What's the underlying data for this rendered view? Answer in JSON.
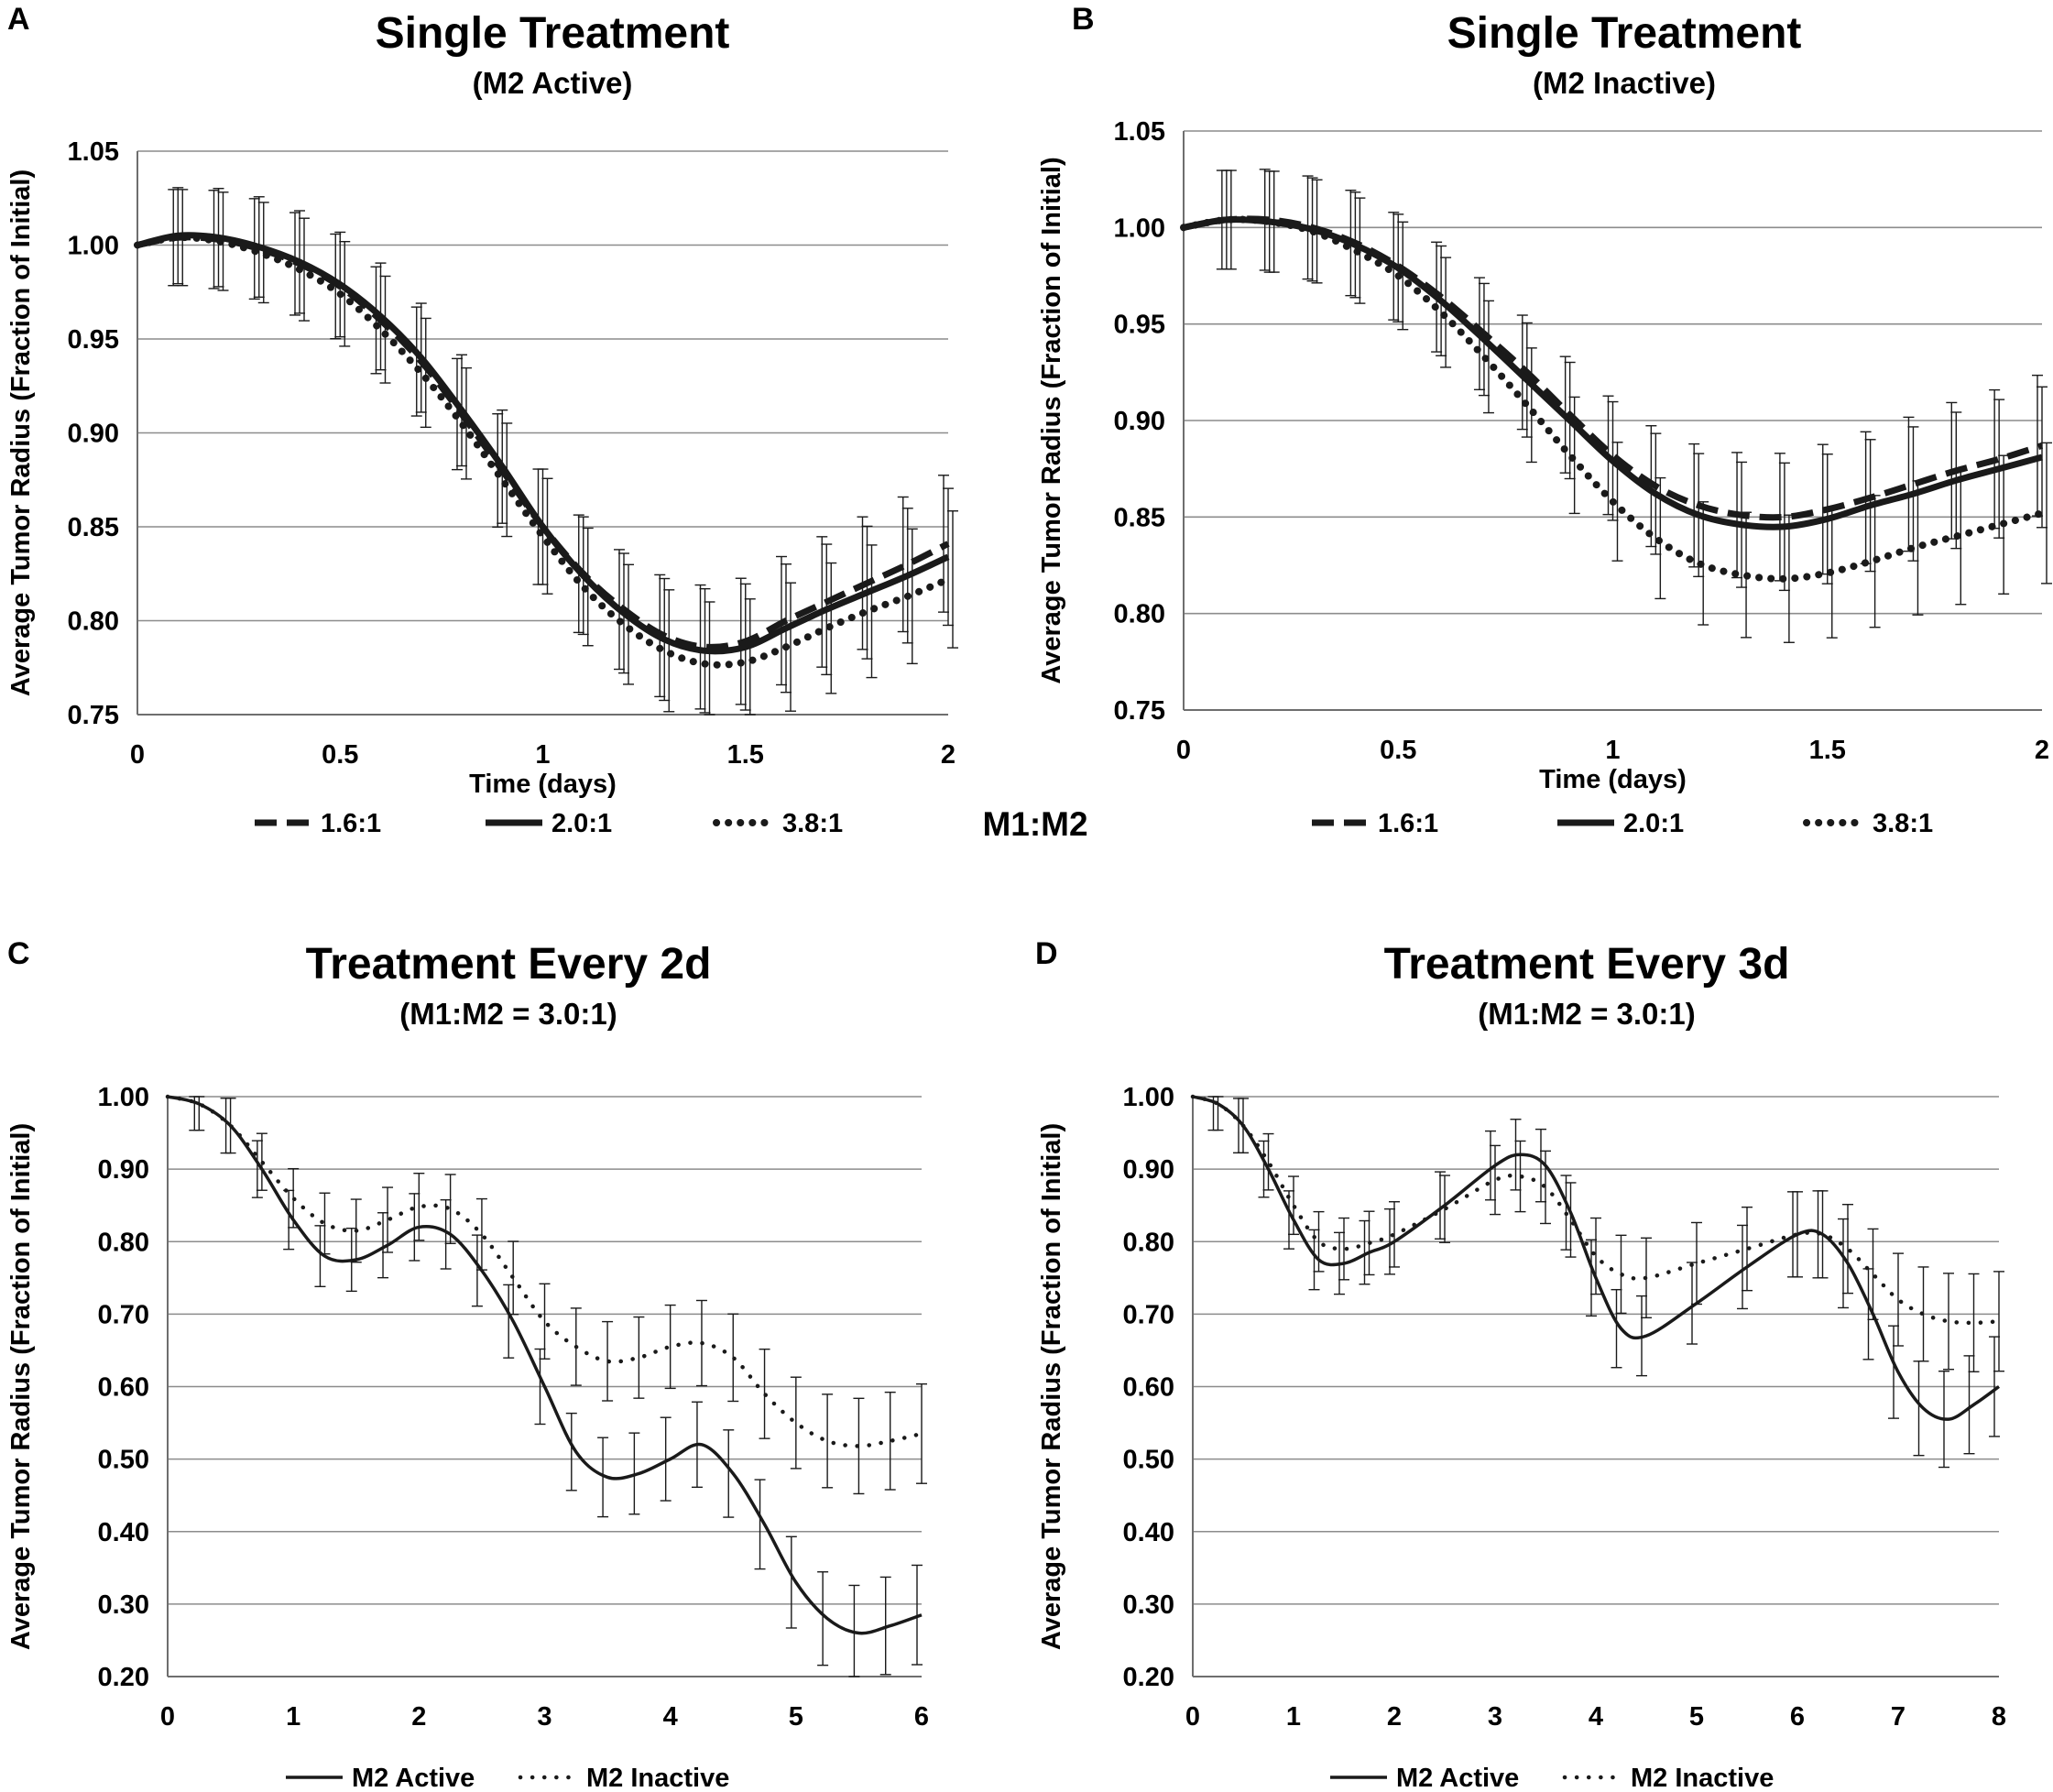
{
  "figure": {
    "shared_legend_label": "M1:M2"
  },
  "chart_data": [
    {
      "panel": "A",
      "type": "line",
      "title": "Single Treatment",
      "subtitle": "(M2 Active)",
      "xlabel": "Time (days)",
      "ylabel": "Average Tumor Radius (Fraction of Initial)",
      "xlim": [
        0,
        2
      ],
      "ylim": [
        0.75,
        1.05
      ],
      "xticks": [
        0,
        0.5,
        1,
        1.5,
        2
      ],
      "xtick_labels": [
        "0",
        "0.5",
        "1",
        "1.5",
        "2"
      ],
      "yticks": [
        0.75,
        0.8,
        0.85,
        0.9,
        0.95,
        1.0,
        1.05
      ],
      "ytick_labels": [
        "0.75",
        "0.80",
        "0.85",
        "0.90",
        "0.95",
        "1.00",
        "1.05"
      ],
      "grid": true,
      "legend_position": "bottom",
      "series": [
        {
          "name": "1.6:1",
          "style": "dashed",
          "x": [
            0,
            0.1,
            0.2,
            0.3,
            0.4,
            0.5,
            0.6,
            0.7,
            0.8,
            0.9,
            1.0,
            1.1,
            1.2,
            1.3,
            1.4,
            1.5,
            1.6,
            1.7,
            1.8,
            1.9,
            2.0
          ],
          "y": [
            1.0,
            1.004,
            1.003,
            0.998,
            0.99,
            0.978,
            0.96,
            0.938,
            0.91,
            0.88,
            0.85,
            0.825,
            0.806,
            0.792,
            0.786,
            0.789,
            0.8,
            0.81,
            0.82,
            0.83,
            0.841
          ]
        },
        {
          "name": "2.0:1",
          "style": "solid",
          "x": [
            0,
            0.1,
            0.2,
            0.3,
            0.4,
            0.5,
            0.6,
            0.7,
            0.8,
            0.9,
            1.0,
            1.1,
            1.2,
            1.3,
            1.4,
            1.5,
            1.6,
            1.7,
            1.8,
            1.9,
            2.0
          ],
          "y": [
            1.0,
            1.005,
            1.004,
            0.999,
            0.991,
            0.979,
            0.962,
            0.94,
            0.912,
            0.882,
            0.85,
            0.824,
            0.804,
            0.79,
            0.784,
            0.786,
            0.796,
            0.806,
            0.815,
            0.824,
            0.834
          ]
        },
        {
          "name": "3.8:1",
          "style": "dotted",
          "x": [
            0,
            0.1,
            0.2,
            0.3,
            0.4,
            0.5,
            0.6,
            0.7,
            0.8,
            0.9,
            1.0,
            1.1,
            1.2,
            1.3,
            1.4,
            1.5,
            1.6,
            1.7,
            1.8,
            1.9,
            2.0
          ],
          "y": [
            1.0,
            1.004,
            1.002,
            0.996,
            0.987,
            0.974,
            0.955,
            0.932,
            0.905,
            0.875,
            0.845,
            0.818,
            0.798,
            0.784,
            0.777,
            0.778,
            0.786,
            0.796,
            0.805,
            0.813,
            0.822
          ]
        }
      ]
    },
    {
      "panel": "B",
      "type": "line",
      "title": "Single Treatment",
      "subtitle": "(M2 Inactive)",
      "xlabel": "Time (days)",
      "ylabel": "Average Tumor Radius (Fraction of Initial)",
      "xlim": [
        0,
        2
      ],
      "ylim": [
        0.75,
        1.05
      ],
      "xticks": [
        0,
        0.5,
        1,
        1.5,
        2
      ],
      "xtick_labels": [
        "0",
        "0.5",
        "1",
        "1.5",
        "2"
      ],
      "yticks": [
        0.75,
        0.8,
        0.85,
        0.9,
        0.95,
        1.0,
        1.05
      ],
      "ytick_labels": [
        "0.75",
        "0.80",
        "0.85",
        "0.90",
        "0.95",
        "1.00",
        "1.05"
      ],
      "grid": true,
      "legend_position": "bottom",
      "series": [
        {
          "name": "1.6:1",
          "style": "dashed",
          "x": [
            0,
            0.1,
            0.2,
            0.3,
            0.4,
            0.5,
            0.6,
            0.7,
            0.8,
            0.9,
            1.0,
            1.1,
            1.2,
            1.3,
            1.4,
            1.5,
            1.6,
            1.7,
            1.8,
            1.9,
            2.0
          ],
          "y": [
            1.0,
            1.004,
            1.004,
            1.0,
            0.992,
            0.98,
            0.964,
            0.945,
            0.925,
            0.903,
            0.882,
            0.866,
            0.856,
            0.851,
            0.85,
            0.854,
            0.86,
            0.867,
            0.874,
            0.88,
            0.887
          ]
        },
        {
          "name": "2.0:1",
          "style": "solid",
          "x": [
            0,
            0.1,
            0.2,
            0.3,
            0.4,
            0.5,
            0.6,
            0.7,
            0.8,
            0.9,
            1.0,
            1.1,
            1.2,
            1.3,
            1.4,
            1.5,
            1.6,
            1.7,
            1.8,
            1.9,
            2.0
          ],
          "y": [
            1.0,
            1.004,
            1.003,
            0.999,
            0.991,
            0.979,
            0.962,
            0.942,
            0.921,
            0.9,
            0.879,
            0.862,
            0.851,
            0.846,
            0.845,
            0.849,
            0.856,
            0.862,
            0.869,
            0.875,
            0.881
          ]
        },
        {
          "name": "3.8:1",
          "style": "dotted",
          "x": [
            0,
            0.1,
            0.2,
            0.3,
            0.4,
            0.5,
            0.6,
            0.7,
            0.8,
            0.9,
            1.0,
            1.1,
            1.2,
            1.3,
            1.4,
            1.5,
            1.6,
            1.7,
            1.8,
            1.9,
            2.0
          ],
          "y": [
            1.0,
            1.004,
            1.003,
            0.998,
            0.988,
            0.975,
            0.956,
            0.933,
            0.908,
            0.882,
            0.858,
            0.839,
            0.826,
            0.82,
            0.818,
            0.821,
            0.827,
            0.834,
            0.84,
            0.846,
            0.852
          ]
        }
      ]
    },
    {
      "panel": "C",
      "type": "line",
      "title": "Treatment Every 2d",
      "subtitle": "(M1:M2 = 3.0:1)",
      "xlabel": "",
      "ylabel": "Average Tumor Radius (Fraction of Initial)",
      "xlim": [
        0,
        6
      ],
      "ylim": [
        0.2,
        1.0
      ],
      "xticks": [
        0,
        1,
        2,
        3,
        4,
        5,
        6
      ],
      "xtick_labels": [
        "0",
        "1",
        "2",
        "3",
        "4",
        "5",
        "6"
      ],
      "yticks": [
        0.2,
        0.3,
        0.4,
        0.5,
        0.6,
        0.7,
        0.8,
        0.9,
        1.0
      ],
      "ytick_labels": [
        "0.20",
        "0.30",
        "0.40",
        "0.50",
        "0.60",
        "0.70",
        "0.80",
        "0.90",
        "1.00"
      ],
      "grid": true,
      "legend_position": "bottom",
      "series": [
        {
          "name": "M2 Active",
          "style": "solid",
          "x": [
            0,
            0.25,
            0.5,
            0.75,
            1.0,
            1.25,
            1.5,
            1.75,
            2.0,
            2.25,
            2.5,
            2.75,
            3.0,
            3.25,
            3.5,
            3.75,
            4.0,
            4.25,
            4.5,
            4.75,
            5.0,
            5.25,
            5.5,
            5.75,
            6.0
          ],
          "y": [
            1.0,
            0.99,
            0.96,
            0.9,
            0.83,
            0.78,
            0.775,
            0.795,
            0.82,
            0.81,
            0.76,
            0.69,
            0.6,
            0.51,
            0.475,
            0.48,
            0.5,
            0.52,
            0.48,
            0.41,
            0.33,
            0.28,
            0.26,
            0.27,
            0.285
          ]
        },
        {
          "name": "M2 Inactive",
          "style": "dotted",
          "x": [
            0,
            0.25,
            0.5,
            0.75,
            1.0,
            1.25,
            1.5,
            1.75,
            2.0,
            2.25,
            2.5,
            2.75,
            3.0,
            3.25,
            3.5,
            3.75,
            4.0,
            4.25,
            4.5,
            4.75,
            5.0,
            5.25,
            5.5,
            5.75,
            6.0
          ],
          "y": [
            1.0,
            0.99,
            0.96,
            0.91,
            0.86,
            0.825,
            0.815,
            0.83,
            0.848,
            0.845,
            0.81,
            0.75,
            0.69,
            0.655,
            0.635,
            0.64,
            0.655,
            0.66,
            0.64,
            0.59,
            0.55,
            0.525,
            0.518,
            0.525,
            0.535
          ]
        }
      ]
    },
    {
      "panel": "D",
      "type": "line",
      "title": "Treatment Every 3d",
      "subtitle": "(M1:M2 = 3.0:1)",
      "xlabel": "",
      "ylabel": "Average Tumor Radius (Fraction of Initial)",
      "xlim": [
        0,
        8
      ],
      "ylim": [
        0.2,
        1.0
      ],
      "xticks": [
        0,
        1,
        2,
        3,
        4,
        5,
        6,
        7,
        8
      ],
      "xtick_labels": [
        "0",
        "1",
        "2",
        "3",
        "4",
        "5",
        "6",
        "7",
        "8"
      ],
      "yticks": [
        0.2,
        0.3,
        0.4,
        0.5,
        0.6,
        0.7,
        0.8,
        0.9,
        1.0
      ],
      "ytick_labels": [
        "0.20",
        "0.30",
        "0.40",
        "0.50",
        "0.60",
        "0.70",
        "0.80",
        "0.90",
        "1.00"
      ],
      "grid": true,
      "legend_position": "bottom",
      "series": [
        {
          "name": "M2 Active",
          "style": "solid",
          "x": [
            0,
            0.25,
            0.5,
            0.75,
            1.0,
            1.25,
            1.5,
            1.75,
            2.0,
            2.5,
            3.0,
            3.25,
            3.5,
            3.75,
            4.0,
            4.25,
            4.5,
            5.0,
            5.5,
            6.0,
            6.25,
            6.5,
            6.75,
            7.0,
            7.25,
            7.5,
            7.75,
            8.0
          ],
          "y": [
            1.0,
            0.99,
            0.96,
            0.9,
            0.83,
            0.775,
            0.77,
            0.785,
            0.8,
            0.85,
            0.905,
            0.92,
            0.905,
            0.84,
            0.75,
            0.68,
            0.67,
            0.715,
            0.765,
            0.81,
            0.81,
            0.77,
            0.7,
            0.62,
            0.57,
            0.555,
            0.575,
            0.6
          ]
        },
        {
          "name": "M2 Inactive",
          "style": "dotted",
          "x": [
            0,
            0.25,
            0.5,
            0.75,
            1.0,
            1.25,
            1.5,
            1.75,
            2.0,
            2.5,
            3.0,
            3.25,
            3.5,
            3.75,
            4.0,
            4.25,
            4.5,
            5.0,
            5.5,
            6.0,
            6.25,
            6.5,
            6.75,
            7.0,
            7.25,
            7.5,
            7.75,
            8.0
          ],
          "y": [
            1.0,
            0.99,
            0.96,
            0.91,
            0.85,
            0.8,
            0.79,
            0.798,
            0.81,
            0.845,
            0.885,
            0.89,
            0.875,
            0.83,
            0.78,
            0.755,
            0.75,
            0.77,
            0.79,
            0.81,
            0.81,
            0.79,
            0.755,
            0.72,
            0.7,
            0.69,
            0.688,
            0.69
          ]
        }
      ]
    }
  ]
}
